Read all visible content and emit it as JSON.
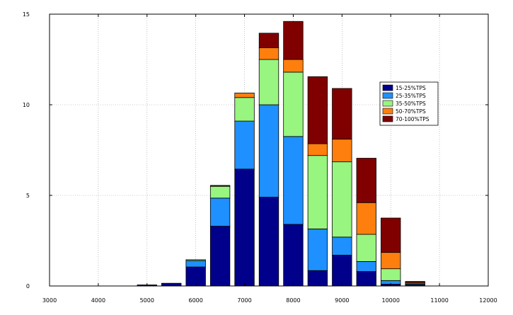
{
  "chart_data": {
    "type": "bar",
    "stacked": true,
    "title": "",
    "xlabel": "",
    "ylabel": "",
    "xlim": [
      3000,
      12000
    ],
    "ylim": [
      0,
      15
    ],
    "xticks": [
      3000,
      4000,
      5000,
      6000,
      7000,
      8000,
      9000,
      10000,
      11000,
      12000
    ],
    "yticks": [
      0,
      5,
      10,
      15
    ],
    "bar_width": 400,
    "grid": true,
    "legend_position": "top-right",
    "x": [
      5000,
      5500,
      6000,
      6500,
      7000,
      7500,
      8000,
      8500,
      9000,
      9500,
      10000,
      10500
    ],
    "series": [
      {
        "name": "15-25%TPS",
        "color": "#00008B",
        "values": [
          0.06,
          0.15,
          1.05,
          3.3,
          6.45,
          4.9,
          3.4,
          0.85,
          1.7,
          0.8,
          0.1,
          0.05
        ]
      },
      {
        "name": "25-35%TPS",
        "color": "#1E90FF",
        "values": [
          0,
          0,
          0.35,
          1.55,
          2.65,
          5.1,
          4.85,
          2.3,
          1.0,
          0.55,
          0.2,
          0.05
        ]
      },
      {
        "name": "35-50%TPS",
        "color": "#98F57F",
        "values": [
          0,
          0,
          0.05,
          0.65,
          1.3,
          2.5,
          3.55,
          4.05,
          4.15,
          1.5,
          0.65,
          0.05
        ]
      },
      {
        "name": "50-70%TPS",
        "color": "#FF7F0E",
        "values": [
          0,
          0,
          0,
          0,
          0.25,
          0.65,
          0.7,
          0.65,
          1.25,
          1.75,
          0.9,
          0.05
        ]
      },
      {
        "name": "70-100%TPS",
        "color": "#800000",
        "values": [
          0,
          0,
          0,
          0.05,
          0,
          0.8,
          2.1,
          3.7,
          2.8,
          2.45,
          1.9,
          0.05
        ]
      }
    ]
  }
}
